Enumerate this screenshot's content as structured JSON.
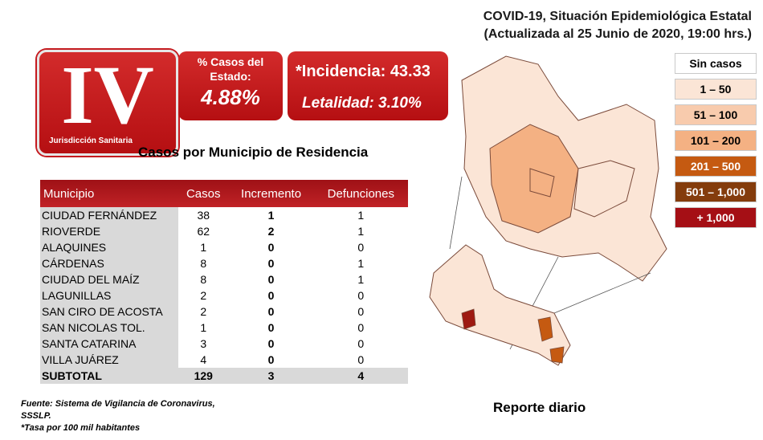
{
  "header": {
    "title_line1": "COVID-19, Situación Epidemiológica Estatal",
    "title_line2": "(Actualizada al 25 Junio de 2020, 19:00 hrs.)"
  },
  "badges": {
    "jurisdiction_roman": "IV",
    "jurisdiction_label": "Jurisdicción Sanitaria",
    "pct_label": "% Casos del Estado:",
    "pct_value": "4.88%",
    "incidence": "*Incidencia: 43.33",
    "lethality": "Letalidad: 3.10%"
  },
  "table_title": "Casos por Municipio  de Residencia",
  "chart_data": {
    "type": "table",
    "columns": [
      "Municipio",
      "Casos",
      "Incremento",
      "Defunciones"
    ],
    "rows": [
      [
        "CIUDAD FERNÁNDEZ",
        "38",
        "1",
        "1"
      ],
      [
        "RIOVERDE",
        "62",
        "2",
        "1"
      ],
      [
        "ALAQUINES",
        "1",
        "0",
        "0"
      ],
      [
        "CÁRDENAS",
        "8",
        "0",
        "1"
      ],
      [
        "CIUDAD DEL MAÍZ",
        "8",
        "0",
        "1"
      ],
      [
        "LAGUNILLAS",
        "2",
        "0",
        "0"
      ],
      [
        "SAN CIRO DE ACOSTA",
        "2",
        "0",
        "0"
      ],
      [
        "SAN NICOLAS TOL.",
        "1",
        "0",
        "0"
      ],
      [
        "SANTA CATARINA",
        "3",
        "0",
        "0"
      ],
      [
        "VILLA JUÁREZ",
        "4",
        "0",
        "0"
      ]
    ],
    "subtotal": [
      "SUBTOTAL",
      "129",
      "3",
      "4"
    ]
  },
  "legend": [
    {
      "label": "Sin casos",
      "color": "#ffffff",
      "text_color": "#000000"
    },
    {
      "label": "1 – 50",
      "color": "#fbe5d6",
      "text_color": "#000000"
    },
    {
      "label": "51 – 100",
      "color": "#f8cbad",
      "text_color": "#000000"
    },
    {
      "label": "101 – 200",
      "color": "#f4b183",
      "text_color": "#000000"
    },
    {
      "label": "201 – 500",
      "color": "#c55a11",
      "text_color": "#ffffff"
    },
    {
      "label": "501 – 1,000",
      "color": "#843c0c",
      "text_color": "#ffffff"
    },
    {
      "label": "+ 1,000",
      "color": "#a50f15",
      "text_color": "#ffffff"
    }
  ],
  "footer": {
    "source_line1": "Fuente: Sistema de Vigilancia de Coronavirus,",
    "source_line2": "SSSLP.",
    "source_line3": "*Tasa por 100 mil habitantes",
    "report": "Reporte diario"
  },
  "colors": {
    "accent_red": "#c12226",
    "map_light": "#fbe5d6",
    "map_mid": "#f4b183",
    "map_dark": "#9e1a12"
  }
}
